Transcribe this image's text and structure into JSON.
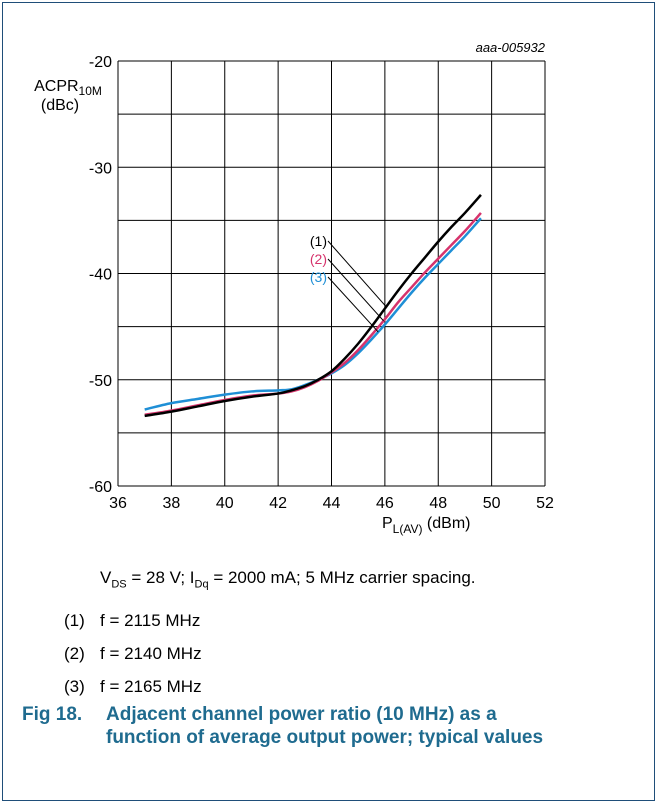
{
  "figure": {
    "ref": "aaa-005932",
    "conditions": {
      "vds_sym": "V",
      "vds_sub": "DS",
      "vds_val": " = 28 V; ",
      "idq_sym": "I",
      "idq_sub": "Dq",
      "idq_val": " = 2000 mA; 5 MHz carrier spacing."
    },
    "legend": [
      {
        "num": "(1)",
        "label": "f = 2115 MHz"
      },
      {
        "num": "(2)",
        "label": "f = 2140 MHz"
      },
      {
        "num": "(3)",
        "label": "f = 2165 MHz"
      }
    ],
    "caption": {
      "fig_no": "Fig 18.",
      "text": "Adjacent channel power ratio (10 MHz) as a function of average output power; typical values"
    }
  },
  "chart_data": {
    "type": "line",
    "ylabel": {
      "main": "ACPR",
      "sub": "10M",
      "unit": "(dBc)"
    },
    "xlabel": {
      "main": "P",
      "sub": "L(AV)",
      "unit": " (dBm)"
    },
    "xlim": [
      36,
      52
    ],
    "ylim": [
      -60,
      -20
    ],
    "x_ticks": [
      36,
      38,
      40,
      42,
      44,
      46,
      48,
      50,
      52
    ],
    "y_ticks": [
      -20,
      -30,
      -40,
      -50,
      -60
    ],
    "grid": true,
    "series": [
      {
        "name": "(1)",
        "color": "#000000",
        "x": [
          37,
          38,
          39,
          40,
          41,
          42,
          42.5,
          43,
          43.5,
          44,
          44.5,
          45,
          45.5,
          46,
          46.5,
          47,
          47.5,
          48,
          48.5,
          49,
          49.6
        ],
        "y": [
          -53.4,
          -53.0,
          -52.5,
          -52.0,
          -51.6,
          -51.3,
          -51.0,
          -50.6,
          -50.0,
          -49.2,
          -48.0,
          -46.6,
          -45.0,
          -43.3,
          -41.6,
          -40.0,
          -38.5,
          -37.0,
          -35.6,
          -34.3,
          -32.6
        ]
      },
      {
        "name": "(2)",
        "color": "#d6336c",
        "x": [
          37,
          38,
          39,
          40,
          41,
          42,
          42.5,
          43,
          43.5,
          44,
          44.5,
          45,
          45.5,
          46,
          46.5,
          47,
          47.5,
          48,
          48.5,
          49,
          49.6
        ],
        "y": [
          -53.3,
          -52.9,
          -52.4,
          -51.9,
          -51.5,
          -51.3,
          -51.1,
          -50.7,
          -50.1,
          -49.3,
          -48.4,
          -47.2,
          -45.8,
          -44.3,
          -42.7,
          -41.3,
          -39.9,
          -38.6,
          -37.3,
          -36.0,
          -34.3
        ]
      },
      {
        "name": "(3)",
        "color": "#1f8fd6",
        "x": [
          37,
          38,
          39,
          40,
          41,
          42,
          42.5,
          43,
          43.5,
          44,
          44.5,
          45,
          45.5,
          46,
          46.5,
          47,
          47.5,
          48,
          48.5,
          49,
          49.6
        ],
        "y": [
          -52.8,
          -52.2,
          -51.8,
          -51.4,
          -51.1,
          -51.0,
          -50.9,
          -50.5,
          -50.0,
          -49.4,
          -48.6,
          -47.5,
          -46.2,
          -44.8,
          -43.3,
          -41.8,
          -40.4,
          -39.1,
          -37.8,
          -36.5,
          -34.8
        ]
      }
    ],
    "annotation_labels": [
      "(1)",
      "(2)",
      "(3)"
    ]
  }
}
